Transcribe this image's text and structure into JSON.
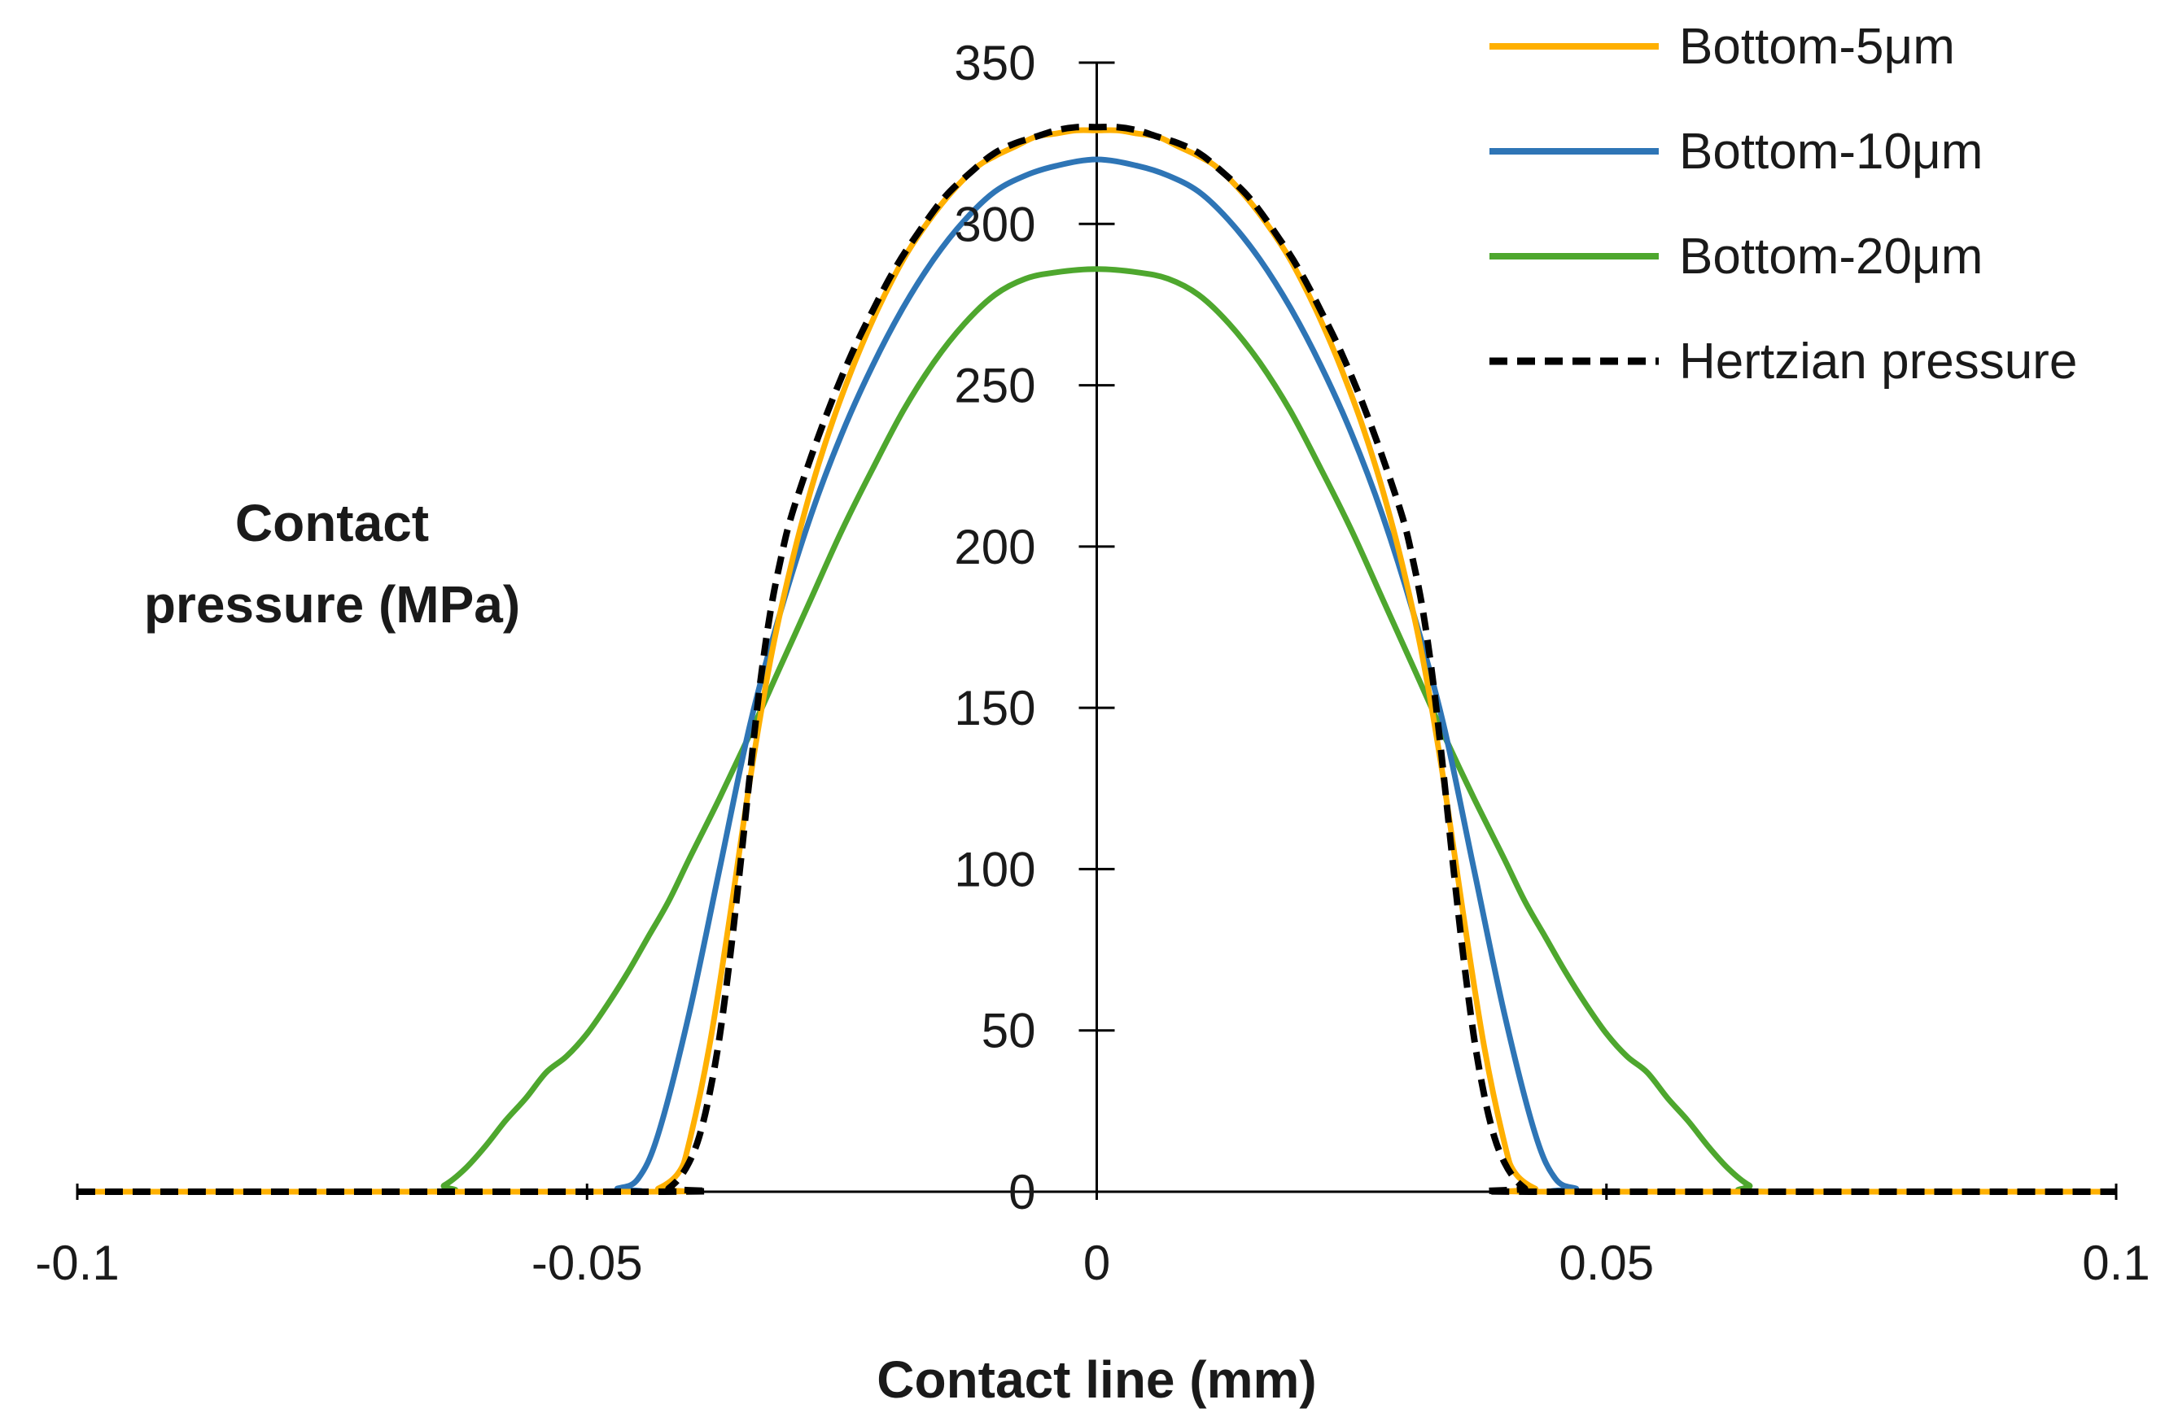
{
  "chart_data": {
    "type": "line",
    "title": "",
    "xlabel": "Contact line (mm)",
    "ylabel_lines": [
      "Contact",
      "pressure (MPa)"
    ],
    "xlim": [
      -0.1,
      0.1
    ],
    "ylim": [
      0,
      350
    ],
    "x_ticks": [
      -0.1,
      -0.05,
      0,
      0.05,
      0.1
    ],
    "x_tick_labels": [
      "-0.1",
      "-0.05",
      "0",
      "0.05",
      "0.1"
    ],
    "y_ticks": [
      0,
      50,
      100,
      150,
      200,
      250,
      300,
      350
    ],
    "y_tick_labels": [
      "0",
      "50",
      "100",
      "150",
      "200",
      "250",
      "300",
      "350"
    ],
    "grid": false,
    "legend_position": "top-right",
    "series": [
      {
        "name": "Bottom-5μm",
        "color": "#FFB000",
        "dash": "solid",
        "x": [
          -0.1,
          -0.045,
          -0.043,
          -0.041,
          -0.04,
          -0.038,
          -0.036,
          -0.034,
          -0.032,
          -0.03,
          -0.028,
          -0.026,
          -0.024,
          -0.022,
          -0.02,
          -0.018,
          -0.015,
          -0.012,
          -0.01,
          -0.008,
          -0.006,
          -0.004,
          -0.002,
          0,
          0.002,
          0.004,
          0.006,
          0.008,
          0.01,
          0.012,
          0.015,
          0.018,
          0.02,
          0.022,
          0.024,
          0.026,
          0.028,
          0.03,
          0.032,
          0.034,
          0.036,
          0.038,
          0.04,
          0.041,
          0.043,
          0.045,
          0.1
        ],
        "y": [
          0,
          0,
          1,
          6,
          15,
          45,
          85,
          128,
          165,
          194,
          218,
          238,
          255,
          270,
          283,
          294,
          307,
          317,
          321,
          324,
          327,
          328,
          329,
          329,
          329,
          328,
          327,
          324,
          321,
          317,
          307,
          294,
          283,
          270,
          255,
          238,
          218,
          194,
          165,
          128,
          85,
          45,
          15,
          6,
          1,
          0,
          0
        ]
      },
      {
        "name": "Bottom-10μm",
        "color": "#2E75B6",
        "dash": "solid",
        "x": [
          -0.1,
          -0.049,
          -0.047,
          -0.045,
          -0.043,
          -0.04,
          -0.037,
          -0.034,
          -0.031,
          -0.028,
          -0.025,
          -0.022,
          -0.019,
          -0.016,
          -0.013,
          -0.01,
          -0.007,
          -0.004,
          0,
          0.004,
          0.007,
          0.01,
          0.013,
          0.016,
          0.019,
          0.022,
          0.025,
          0.028,
          0.031,
          0.034,
          0.037,
          0.04,
          0.043,
          0.045,
          0.047,
          0.049,
          0.1
        ],
        "y": [
          0,
          0,
          1,
          4,
          18,
          55,
          100,
          145,
          180,
          210,
          235,
          256,
          274,
          289,
          301,
          310,
          315,
          318,
          320,
          318,
          315,
          310,
          301,
          289,
          274,
          256,
          235,
          210,
          180,
          145,
          100,
          55,
          18,
          4,
          1,
          0,
          0
        ]
      },
      {
        "name": "Bottom-20μm",
        "color": "#4EA72E",
        "dash": "solid",
        "x": [
          -0.1,
          -0.066,
          -0.064,
          -0.062,
          -0.06,
          -0.058,
          -0.056,
          -0.054,
          -0.052,
          -0.05,
          -0.048,
          -0.046,
          -0.044,
          -0.042,
          -0.04,
          -0.037,
          -0.034,
          -0.031,
          -0.028,
          -0.025,
          -0.022,
          -0.019,
          -0.016,
          -0.013,
          -0.01,
          -0.007,
          -0.004,
          0,
          0.004,
          0.007,
          0.01,
          0.013,
          0.016,
          0.019,
          0.022,
          0.025,
          0.028,
          0.031,
          0.034,
          0.037,
          0.04,
          0.042,
          0.044,
          0.046,
          0.048,
          0.05,
          0.052,
          0.054,
          0.056,
          0.058,
          0.06,
          0.062,
          0.064,
          0.066,
          0.1
        ],
        "y": [
          0,
          0,
          2,
          7,
          14,
          22,
          29,
          37,
          42,
          49,
          58,
          68,
          79,
          90,
          103,
          122,
          142,
          163,
          184,
          205,
          224,
          242,
          257,
          269,
          278,
          283,
          285,
          286,
          285,
          283,
          278,
          269,
          257,
          242,
          224,
          205,
          184,
          163,
          142,
          122,
          103,
          90,
          79,
          68,
          58,
          49,
          42,
          37,
          29,
          22,
          14,
          7,
          2,
          0,
          0
        ]
      },
      {
        "name": "Hertzian pressure",
        "color": "#000000",
        "dash": "dashed",
        "x": [
          -0.1,
          -0.0425,
          -0.042,
          -0.041,
          -0.04,
          -0.039,
          -0.038,
          -0.037,
          -0.036,
          -0.035,
          -0.034,
          -0.033,
          -0.032,
          -0.031,
          -0.03,
          -0.028,
          -0.026,
          -0.024,
          -0.022,
          -0.02,
          -0.018,
          -0.015,
          -0.012,
          -0.01,
          -0.008,
          -0.006,
          -0.004,
          -0.002,
          0,
          0.002,
          0.004,
          0.006,
          0.008,
          0.01,
          0.012,
          0.015,
          0.018,
          0.02,
          0.022,
          0.024,
          0.026,
          0.028,
          0.03,
          0.031,
          0.032,
          0.033,
          0.034,
          0.035,
          0.036,
          0.037,
          0.038,
          0.039,
          0.04,
          0.041,
          0.042,
          0.0425,
          0.1
        ],
        "y": [
          0,
          0,
          1,
          4,
          9,
          17,
          30,
          48,
          72,
          100,
          130,
          158,
          180,
          196,
          209,
          228,
          245,
          260,
          273,
          285,
          295,
          308,
          317,
          322,
          325,
          327,
          329,
          330,
          330,
          330,
          329,
          327,
          325,
          322,
          317,
          308,
          295,
          285,
          273,
          260,
          245,
          228,
          209,
          196,
          180,
          158,
          130,
          100,
          72,
          48,
          30,
          17,
          9,
          4,
          1,
          0,
          0
        ]
      }
    ]
  }
}
